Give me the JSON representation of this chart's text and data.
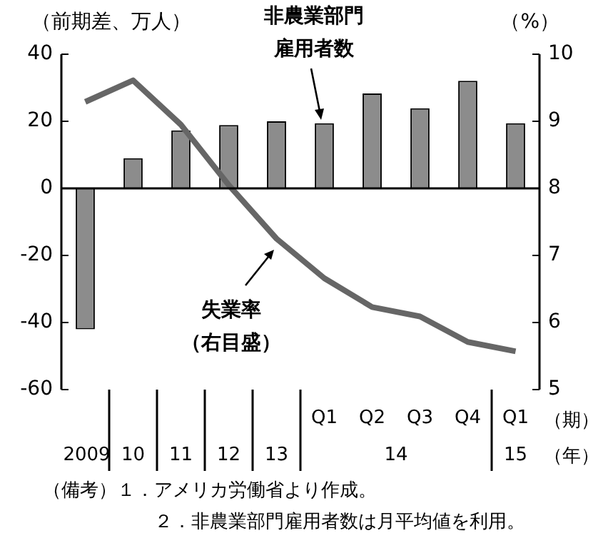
{
  "chart_data": {
    "type": "bar",
    "categories": [
      "2009",
      "10",
      "11",
      "12",
      "13",
      "Q1",
      "Q2",
      "Q3",
      "Q4",
      "Q1"
    ],
    "ylabel": "（前期差、万人）",
    "y2label": "（%）",
    "xlabel": "（期）",
    "series": [
      {
        "name": "非農業部門雇用者数",
        "color": "#8c8c8c",
        "values": [
          -42,
          9,
          17.3,
          18.9,
          20,
          19.4,
          28.3,
          23.9,
          32.1,
          19.4
        ]
      },
      {
        "name": "失業率（右目盛）",
        "type": "line",
        "axis": "y2",
        "color": "#666666",
        "values": [
          9.29,
          9.61,
          8.95,
          8.05,
          7.25,
          6.66,
          6.23,
          6.09,
          5.71,
          5.57
        ]
      }
    ],
    "ylim": [
      -60,
      40
    ],
    "yticks": [
      -60,
      -40,
      -20,
      0,
      20,
      40
    ],
    "y2lim": [
      5,
      10
    ],
    "y2ticks": [
      5,
      6,
      7,
      8,
      9,
      10
    ],
    "grid": false,
    "ref_lines": [
      {
        "axis": "y",
        "value": 0
      }
    ],
    "legend": false,
    "marker": "none",
    "line_style": "solid",
    "annotations": [
      "14",
      "15",
      "（年）",
      "（備考）１．アメリカ労働省より作成。",
      "２．非農業部門雇用者数は月平均値を利用。"
    ]
  }
}
